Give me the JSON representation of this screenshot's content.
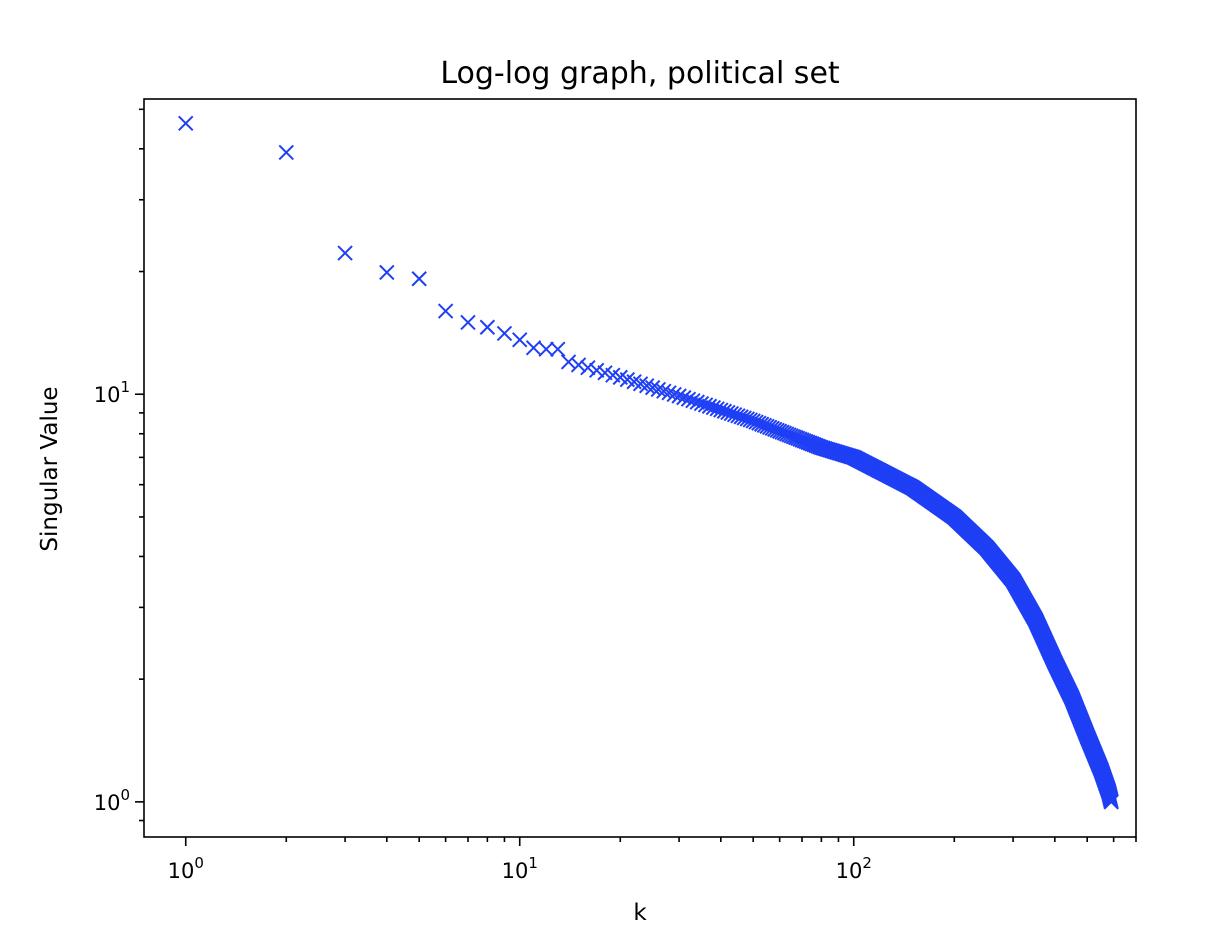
{
  "chart_data": {
    "type": "scatter",
    "title": "Log-log graph, political set",
    "xlabel": "k",
    "ylabel": "Singular Value",
    "xscale": "log",
    "yscale": "log",
    "xlim": [
      0.75,
      700
    ],
    "ylim": [
      0.82,
      53
    ],
    "xticks": [
      {
        "value": 1,
        "base": "10",
        "exp": "0"
      },
      {
        "value": 10,
        "base": "10",
        "exp": "1"
      },
      {
        "value": 100,
        "base": "10",
        "exp": "2"
      }
    ],
    "yticks": [
      {
        "value": 1,
        "base": "10",
        "exp": "0"
      },
      {
        "value": 10,
        "base": "10",
        "exp": "1"
      }
    ],
    "marker": "x",
    "color": "#1f3ff5",
    "grid": false,
    "n_points": 590,
    "head_points": [
      [
        1,
        46.2
      ],
      [
        2,
        39.2
      ],
      [
        3,
        22.2
      ],
      [
        4,
        19.9
      ],
      [
        5,
        19.2
      ],
      [
        6,
        16.0
      ],
      [
        7,
        15.0
      ],
      [
        8,
        14.6
      ],
      [
        9,
        14.1
      ],
      [
        10,
        13.6
      ],
      [
        11,
        13.0
      ],
      [
        12,
        12.9
      ],
      [
        13,
        12.9
      ],
      [
        14,
        12.0
      ],
      [
        15,
        11.8
      ]
    ],
    "curve_knots": [
      [
        15,
        11.8
      ],
      [
        20,
        11.0
      ],
      [
        30,
        9.9
      ],
      [
        50,
        8.6
      ],
      [
        80,
        7.4
      ],
      [
        100,
        7.0
      ],
      [
        150,
        5.9
      ],
      [
        200,
        5.0
      ],
      [
        250,
        4.2
      ],
      [
        300,
        3.5
      ],
      [
        350,
        2.8
      ],
      [
        400,
        2.2
      ],
      [
        450,
        1.8
      ],
      [
        500,
        1.45
      ],
      [
        550,
        1.2
      ],
      [
        580,
        1.06
      ],
      [
        590,
        1.0
      ]
    ]
  }
}
